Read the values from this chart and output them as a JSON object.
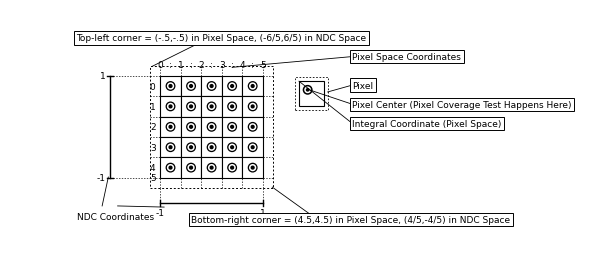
{
  "grid_cols": 5,
  "grid_rows": 5,
  "col_labels": [
    "0",
    "1",
    "2",
    "3",
    "4",
    "5"
  ],
  "row_labels": [
    "0",
    "1",
    "2",
    "3",
    "4",
    "5"
  ],
  "top_left_label": "Top-left corner = (-.5,-.5) in Pixel Space, (-6/5,6/5) in NDC Space",
  "bottom_right_label": "Bottom-right corner = (4.5,4.5) in Pixel Space, (4/5,-4/5) in NDC Space",
  "ndc_label": "NDC Coordinates",
  "pixel_space_coords_label": "Pixel Space Coordinates",
  "pixel_label": "Pixel",
  "pixel_center_label": "Pixel Center (Pixel Coverage Test Happens Here)",
  "integral_coord_label": "Integral Coordinate (Pixel Space)",
  "bg_color": "#ffffff",
  "label_fontsize": 6.5,
  "tick_fontsize": 6.5
}
